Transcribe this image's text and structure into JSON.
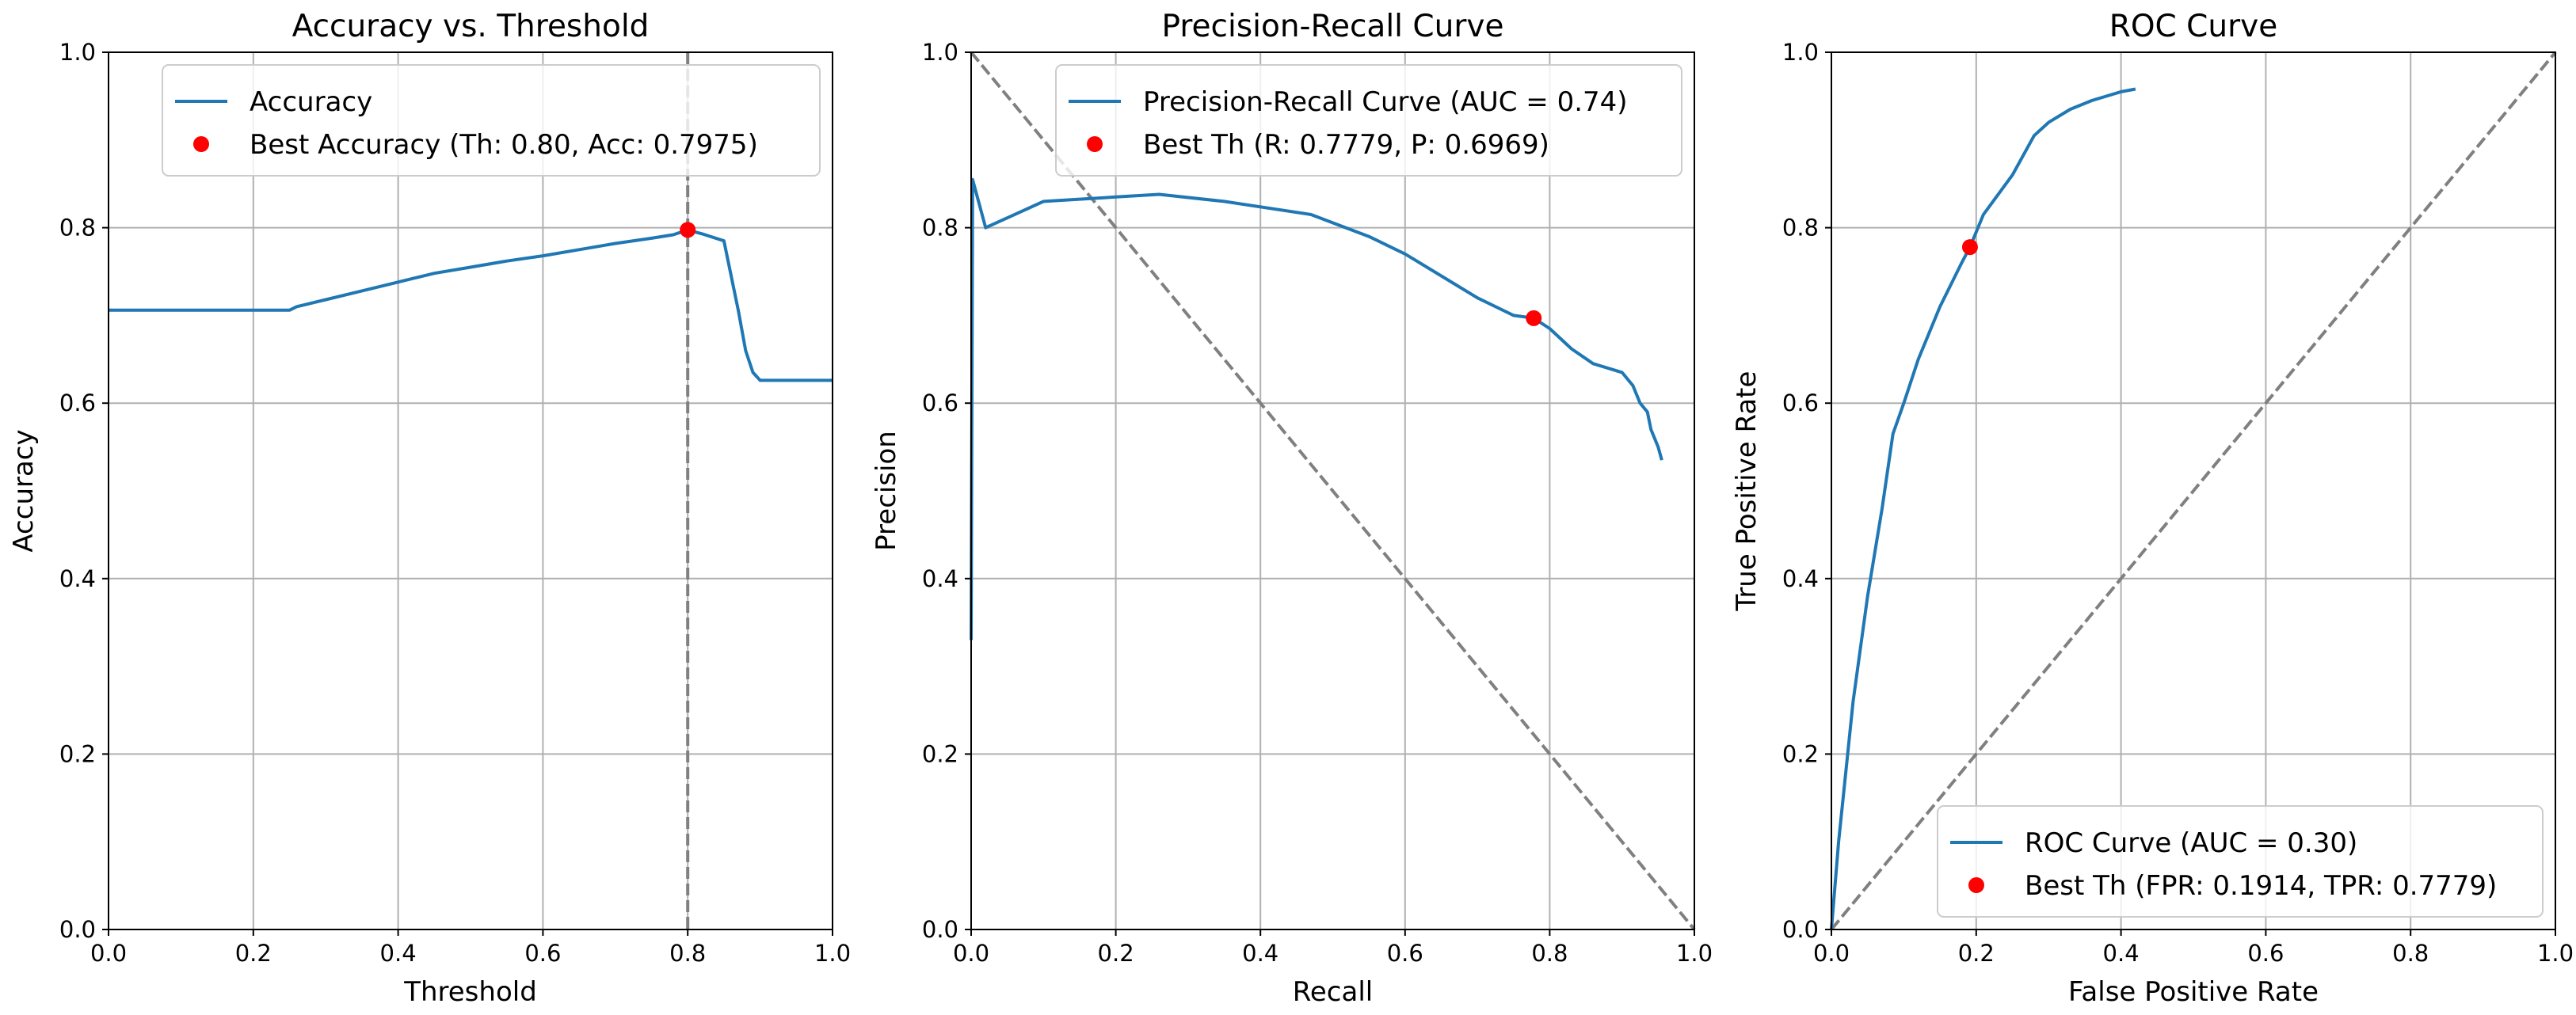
{
  "colors": {
    "series": "#1f77b4",
    "marker": "#ff0000",
    "reference": "#808080",
    "grid": "#b0b0b0"
  },
  "chart_data": [
    {
      "type": "line",
      "title": "Accuracy vs. Threshold",
      "xlabel": "Threshold",
      "ylabel": "Accuracy",
      "xlim": [
        0,
        1
      ],
      "ylim": [
        0,
        1
      ],
      "xticks": [
        "0.0",
        "0.2",
        "0.4",
        "0.6",
        "0.8",
        "1.0"
      ],
      "yticks": [
        "0.0",
        "0.2",
        "0.4",
        "0.6",
        "0.8",
        "1.0"
      ],
      "grid": true,
      "legend_position": "top-right",
      "series": [
        {
          "name": "Accuracy",
          "x": [
            0.0,
            0.05,
            0.1,
            0.15,
            0.2,
            0.25,
            0.26,
            0.3,
            0.35,
            0.4,
            0.45,
            0.5,
            0.55,
            0.6,
            0.65,
            0.7,
            0.75,
            0.78,
            0.8,
            0.82,
            0.85,
            0.87,
            0.88,
            0.89,
            0.9,
            0.92,
            0.95,
            1.0
          ],
          "y": [
            0.706,
            0.706,
            0.706,
            0.706,
            0.706,
            0.706,
            0.71,
            0.718,
            0.728,
            0.738,
            0.748,
            0.755,
            0.762,
            0.768,
            0.775,
            0.782,
            0.788,
            0.792,
            0.7975,
            0.793,
            0.785,
            0.705,
            0.66,
            0.635,
            0.626,
            0.626,
            0.626,
            0.626
          ]
        }
      ],
      "reference_line": {
        "orientation": "vertical",
        "x": 0.8
      },
      "best_point": {
        "name": "Best Accuracy (Th: 0.80, Acc: 0.7975)",
        "x": 0.8,
        "y": 0.7975
      }
    },
    {
      "type": "line",
      "title": "Precision-Recall Curve",
      "xlabel": "Recall",
      "ylabel": "Precision",
      "xlim": [
        0,
        1
      ],
      "ylim": [
        0,
        1
      ],
      "xticks": [
        "0.0",
        "0.2",
        "0.4",
        "0.6",
        "0.8",
        "1.0"
      ],
      "yticks": [
        "0.0",
        "0.2",
        "0.4",
        "0.6",
        "0.8",
        "1.0"
      ],
      "grid": true,
      "legend_position": "top-right",
      "series": [
        {
          "name": "Precision-Recall Curve (AUC = 0.74)",
          "x": [
            0.0,
            0.002,
            0.02,
            0.1,
            0.2,
            0.26,
            0.35,
            0.47,
            0.55,
            0.6,
            0.65,
            0.7,
            0.75,
            0.7779,
            0.8,
            0.83,
            0.86,
            0.9,
            0.915,
            0.925,
            0.935,
            0.94,
            0.95,
            0.955
          ],
          "y": [
            0.33,
            0.855,
            0.8,
            0.83,
            0.835,
            0.838,
            0.83,
            0.815,
            0.79,
            0.77,
            0.745,
            0.72,
            0.7,
            0.6969,
            0.685,
            0.662,
            0.645,
            0.635,
            0.62,
            0.6,
            0.59,
            0.57,
            0.55,
            0.535
          ]
        }
      ],
      "reference_line": {
        "orientation": "diagonal",
        "from": [
          0,
          1
        ],
        "to": [
          1,
          0
        ]
      },
      "best_point": {
        "name": "Best Th (R: 0.7779, P: 0.6969)",
        "x": 0.7779,
        "y": 0.6969
      }
    },
    {
      "type": "line",
      "title": "ROC Curve",
      "xlabel": "False Positive Rate",
      "ylabel": "True Positive Rate",
      "xlim": [
        0,
        1
      ],
      "ylim": [
        0,
        1
      ],
      "xticks": [
        "0.0",
        "0.2",
        "0.4",
        "0.6",
        "0.8",
        "1.0"
      ],
      "yticks": [
        "0.0",
        "0.2",
        "0.4",
        "0.6",
        "0.8",
        "1.0"
      ],
      "grid": true,
      "legend_position": "bottom-right",
      "series": [
        {
          "name": "ROC Curve (AUC = 0.30)",
          "x": [
            0.0,
            0.01,
            0.03,
            0.05,
            0.07,
            0.085,
            0.1,
            0.12,
            0.15,
            0.18,
            0.1914,
            0.21,
            0.25,
            0.28,
            0.3,
            0.33,
            0.36,
            0.4,
            0.42
          ],
          "y": [
            0.0,
            0.1,
            0.26,
            0.38,
            0.48,
            0.565,
            0.6,
            0.65,
            0.71,
            0.76,
            0.7779,
            0.815,
            0.86,
            0.905,
            0.92,
            0.935,
            0.945,
            0.955,
            0.958
          ]
        }
      ],
      "reference_line": {
        "orientation": "diagonal",
        "from": [
          0,
          0
        ],
        "to": [
          1,
          1
        ]
      },
      "best_point": {
        "name": "Best Th (FPR: 0.1914, TPR: 0.7779)",
        "x": 0.1914,
        "y": 0.7779
      }
    }
  ]
}
